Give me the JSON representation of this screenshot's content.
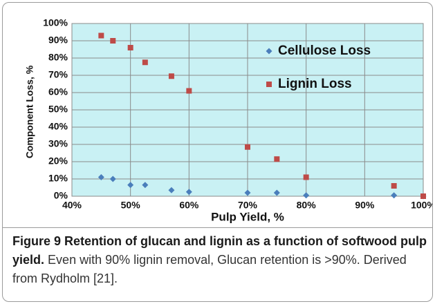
{
  "chart_data": {
    "type": "scatter",
    "x_label": "Pulp Yield, %",
    "y_label": "Component Loss, %",
    "xlim": [
      40,
      100
    ],
    "ylim": [
      0,
      100
    ],
    "xticks": [
      {
        "value": 40,
        "label": "40%"
      },
      {
        "value": 50,
        "label": "50%"
      },
      {
        "value": 60,
        "label": "60%"
      },
      {
        "value": 70,
        "label": "70%"
      },
      {
        "value": 80,
        "label": "80%"
      },
      {
        "value": 90,
        "label": "90%"
      },
      {
        "value": 100,
        "label": "100%"
      }
    ],
    "yticks": [
      {
        "value": 0,
        "label": "0%"
      },
      {
        "value": 10,
        "label": "10%"
      },
      {
        "value": 20,
        "label": "20%"
      },
      {
        "value": 30,
        "label": "30%"
      },
      {
        "value": 40,
        "label": "40%"
      },
      {
        "value": 50,
        "label": "50%"
      },
      {
        "value": 60,
        "label": "60%"
      },
      {
        "value": 70,
        "label": "70%"
      },
      {
        "value": 80,
        "label": "80%"
      },
      {
        "value": 90,
        "label": "90%"
      },
      {
        "value": 100,
        "label": "100%"
      }
    ],
    "grid": true,
    "legend": "upper right",
    "background": "#c9f1f4",
    "series": [
      {
        "name": "Cellulose Loss",
        "color": "#4a7ebb",
        "marker": "diamond",
        "x": [
          45,
          47,
          50,
          52.5,
          57,
          60,
          70,
          75,
          80,
          95,
          100
        ],
        "values": [
          11,
          10,
          6.5,
          6.5,
          3.5,
          2.5,
          2,
          2,
          0.5,
          0.5,
          0
        ]
      },
      {
        "name": "Lignin Loss",
        "color": "#be4b48",
        "marker": "square",
        "x": [
          45,
          47,
          50,
          52.5,
          57,
          60,
          70,
          75,
          80,
          95,
          100
        ],
        "values": [
          93,
          90,
          86,
          77.5,
          69.5,
          61,
          28.5,
          21.5,
          11,
          6,
          0
        ]
      }
    ]
  },
  "caption": {
    "label": "Figure 9 Retention of glucan and lignin as a function of softwood pulp yield.",
    "text": "Even with 90% lignin removal, Glucan retention is >90%. Derived from Rydholm [21]."
  }
}
